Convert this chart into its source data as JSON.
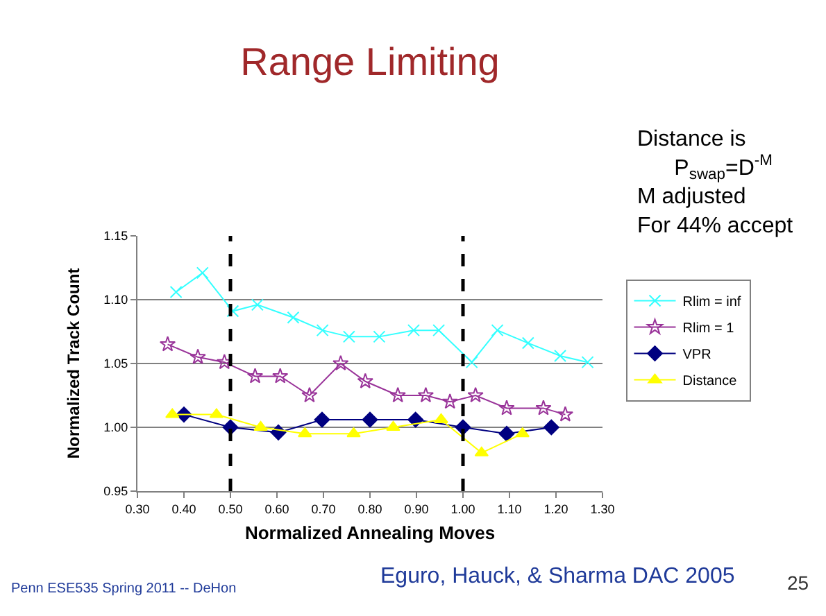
{
  "chart_data": {
    "type": "line",
    "title": "Range Limiting",
    "xlabel": "Normalized Annealing Moves",
    "ylabel": "Normalized Track Count",
    "xlim": [
      0.3,
      1.3
    ],
    "xticks": [
      {
        "value": 0.3,
        "label": "0.30"
      },
      {
        "value": 0.4,
        "label": "0.40"
      },
      {
        "value": 0.5,
        "label": "0.50"
      },
      {
        "value": 0.6,
        "label": "0.60"
      },
      {
        "value": 0.7,
        "label": "0.70"
      },
      {
        "value": 0.8,
        "label": "0.80"
      },
      {
        "value": 0.9,
        "label": "0.90"
      },
      {
        "value": 1.0,
        "label": "1.00"
      },
      {
        "value": 1.1,
        "label": "1.10"
      },
      {
        "value": 1.2,
        "label": "1.20"
      },
      {
        "value": 1.3,
        "label": "1.30"
      }
    ],
    "ylim": [
      0.95,
      1.15
    ],
    "yticks": [
      {
        "value": 0.95,
        "label": "0.95"
      },
      {
        "value": 1.0,
        "label": "1.00"
      },
      {
        "value": 1.05,
        "label": "1.05"
      },
      {
        "value": 1.1,
        "label": "1.10"
      },
      {
        "value": 1.15,
        "label": "1.15"
      }
    ],
    "grid": "y",
    "legend": "right",
    "series": [
      {
        "name": "Rlim = inf",
        "color": "#33ffff",
        "marker": "cross",
        "x": [
          0.383,
          0.44,
          0.505,
          0.558,
          0.635,
          0.698,
          0.755,
          0.82,
          0.894,
          0.948,
          1.019,
          1.074,
          1.14,
          1.209,
          1.268
        ],
        "values": [
          1.106,
          1.121,
          1.091,
          1.096,
          1.086,
          1.076,
          1.071,
          1.071,
          1.076,
          1.076,
          1.051,
          1.076,
          1.066,
          1.056,
          1.051
        ]
      },
      {
        "name": "Rlim = 1",
        "color": "#993399",
        "marker": "star",
        "x": [
          0.365,
          0.43,
          0.487,
          0.553,
          0.607,
          0.67,
          0.737,
          0.79,
          0.86,
          0.92,
          0.972,
          1.027,
          1.094,
          1.173,
          1.22
        ],
        "values": [
          1.065,
          1.055,
          1.051,
          1.04,
          1.04,
          1.025,
          1.05,
          1.036,
          1.025,
          1.025,
          1.02,
          1.025,
          1.015,
          1.015,
          1.01
        ]
      },
      {
        "name": "VPR",
        "color": "#000080",
        "marker": "diamond",
        "x": [
          0.4,
          0.5,
          0.603,
          0.697,
          0.8,
          0.898,
          1.0,
          1.094,
          1.19
        ],
        "values": [
          1.01,
          1.0,
          0.996,
          1.006,
          1.006,
          1.006,
          1.0,
          0.995,
          1.0
        ]
      },
      {
        "name": "Distance",
        "color": "#ffff00",
        "marker": "triangle",
        "x": [
          0.375,
          0.47,
          0.565,
          0.66,
          0.765,
          0.85,
          0.953,
          1.04,
          1.128
        ],
        "values": [
          1.01,
          1.01,
          1.0,
          0.995,
          0.995,
          1.0,
          1.006,
          0.98,
          0.995
        ]
      }
    ],
    "ref_lines": [
      {
        "axis": "x",
        "value": 0.5,
        "color": "#000000",
        "line_style": "dashed"
      },
      {
        "axis": "x",
        "value": 1.0,
        "color": "#000000",
        "line_style": "dashed"
      }
    ],
    "annotations": [
      "Distance is\n   P$_{swap}$=D$^{-M}$\nM adjusted\nFor 44% accept",
      "Penn ESE535 Spring 2011 -- DeHon",
      "Eguro, Hauck, & Sharma DAC 2005",
      "25"
    ]
  }
}
